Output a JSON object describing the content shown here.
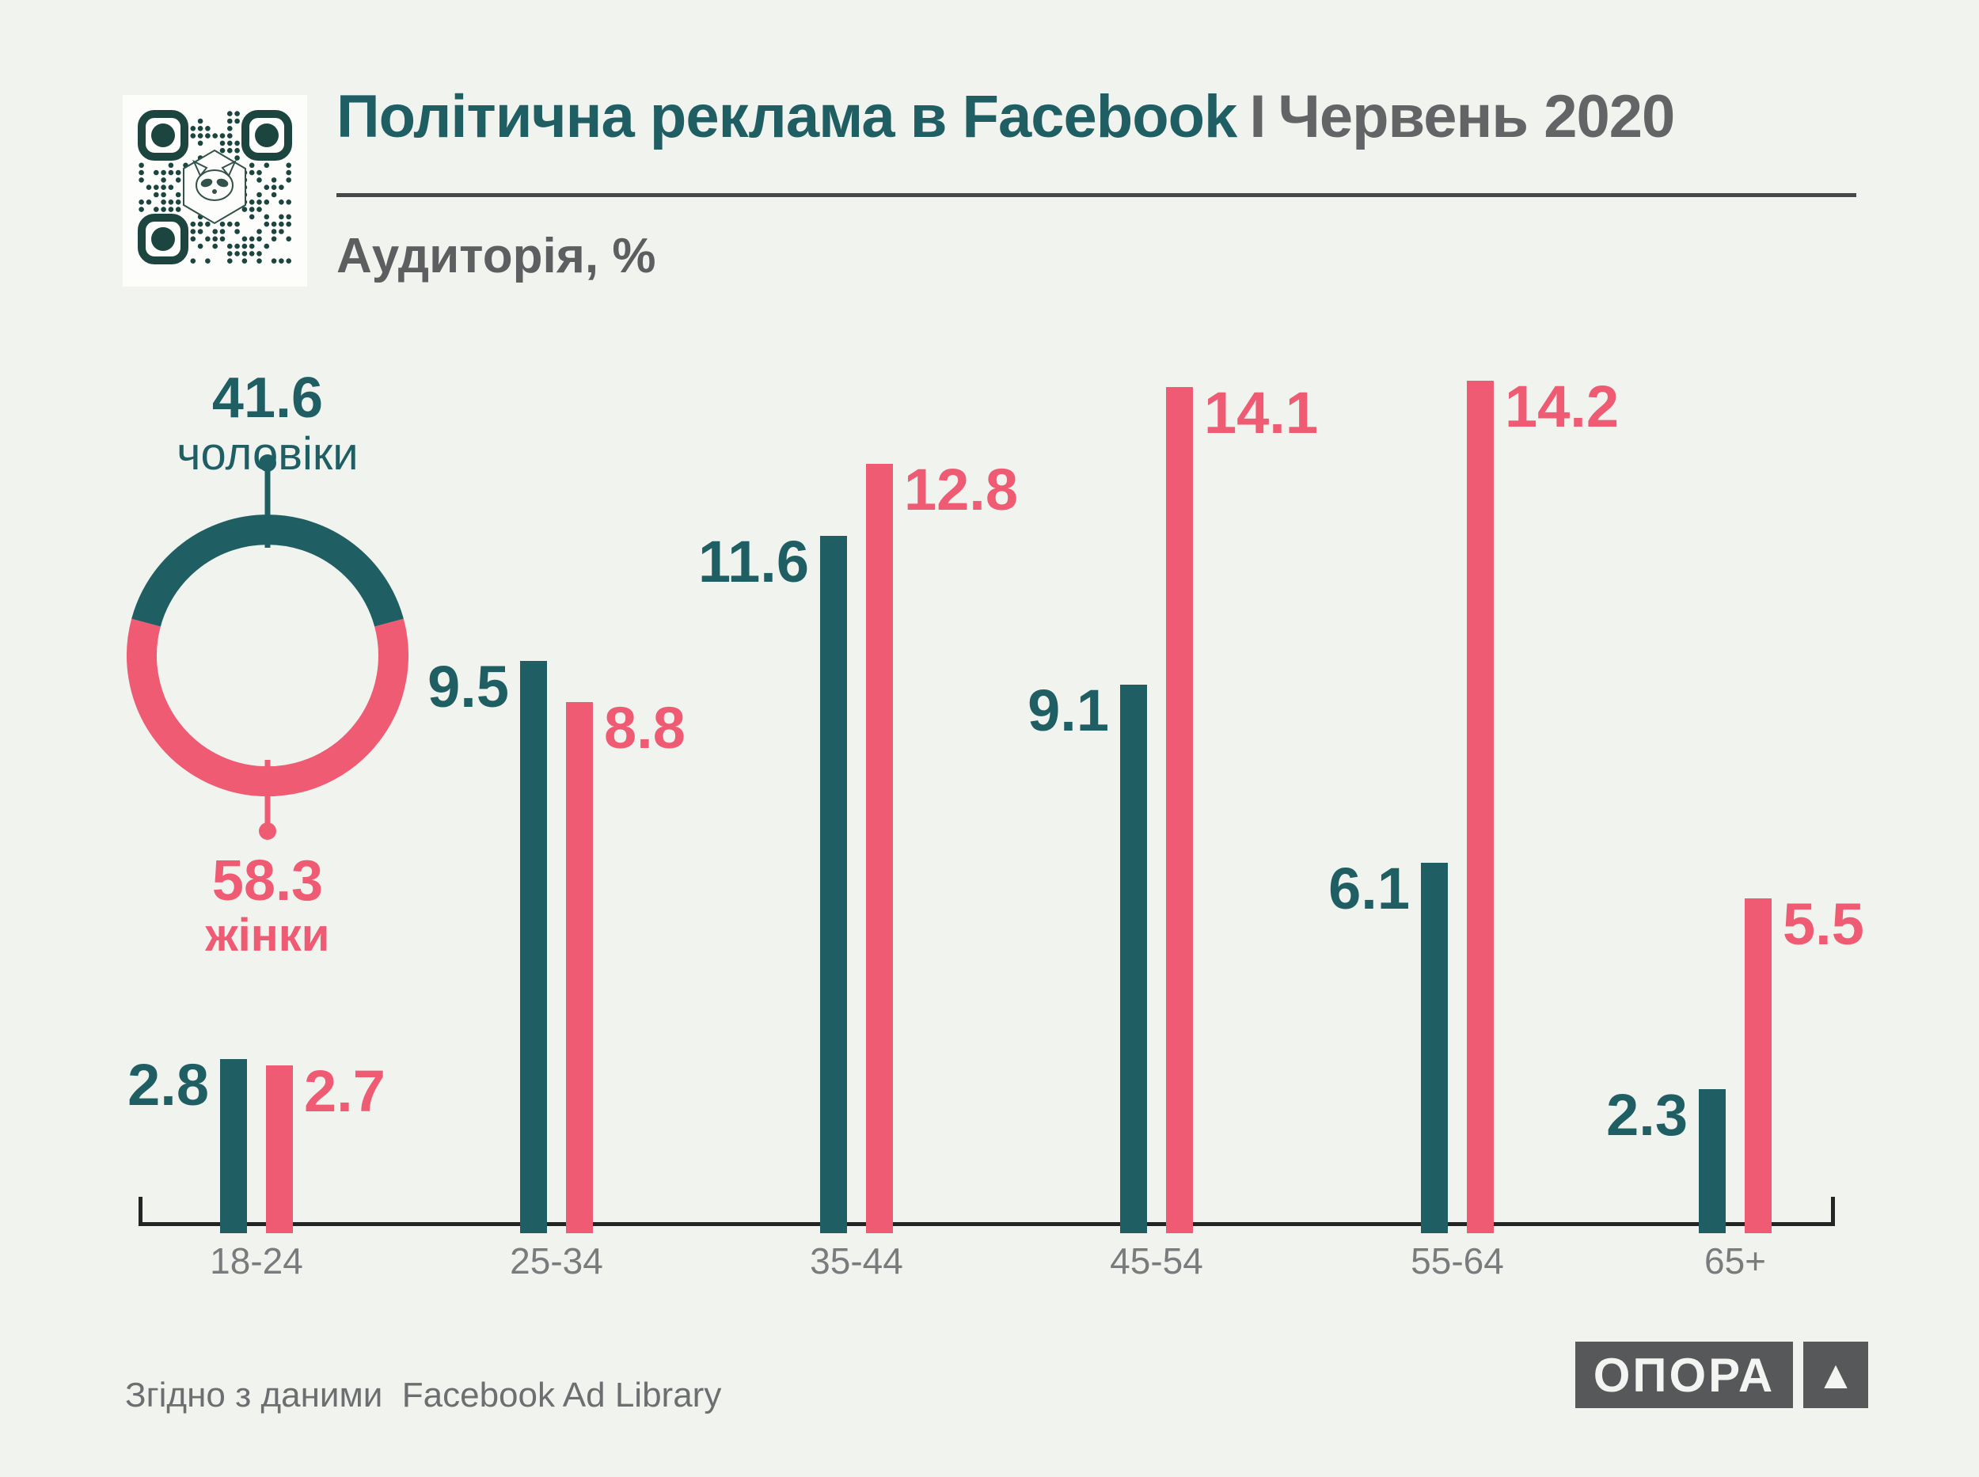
{
  "header": {
    "title_main": "Політична реклама в Facebook",
    "title_divider": "І",
    "title_period": "Червень 2020",
    "subtitle": "Аудиторія, %"
  },
  "colors": {
    "background": "#f1f3ef",
    "men_teal": "#1f5f63",
    "women_pink": "#ee5b72",
    "heading_grey": "#5d5e60",
    "axis_label_grey": "#7a7b7d",
    "axis_line": "#242424",
    "footer_grey": "#6d6e70",
    "logo_grey": "#57585a",
    "qr_dark": "#1c453f",
    "card_white": "#fdfdfc"
  },
  "icons": {
    "qr_code": "qr-code",
    "logo_mark": "▲"
  },
  "chart_data": [
    {
      "type": "pie",
      "subtype": "donut",
      "labels": [
        "чоловіки",
        "жінки"
      ],
      "values": [
        41.6,
        58.3
      ],
      "colors": [
        "#1f5f63",
        "#ee5b72"
      ],
      "legend_position": "callout-labels",
      "notes": "teal arc (men) centered on top, pink arc (women) on bottom"
    },
    {
      "type": "bar",
      "title": "Аудиторія, %",
      "categories": [
        "18-24",
        "25-34",
        "35-44",
        "45-54",
        "55-64",
        "65+"
      ],
      "series": [
        {
          "name": "чоловіки",
          "color": "#1f5f63",
          "values": [
            2.8,
            9.5,
            11.6,
            9.1,
            6.1,
            2.3
          ]
        },
        {
          "name": "жінки",
          "color": "#ee5b72",
          "values": [
            2.7,
            8.8,
            12.8,
            14.1,
            14.2,
            5.5
          ]
        }
      ],
      "xlabel": "",
      "ylabel": "",
      "ylim": [
        0,
        15
      ],
      "grid": false,
      "value_labels": "beside bar tops"
    }
  ],
  "footer": {
    "source": "Згідно з даними  Facebook Ad Library",
    "logo_text": "ОПОРА",
    "logo_mark": "▲"
  }
}
